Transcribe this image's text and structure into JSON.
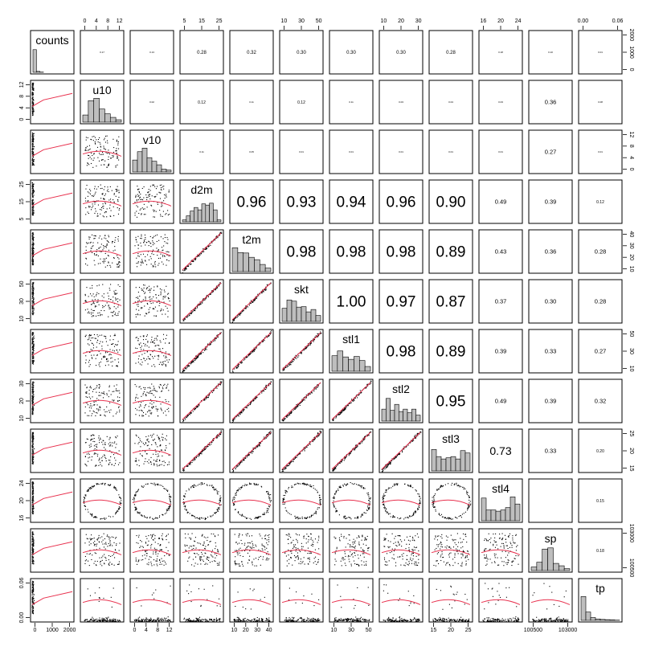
{
  "chart_data": {
    "type": "scatter-matrix",
    "variables": [
      "counts",
      "u10",
      "v10",
      "d2m",
      "t2m",
      "skt",
      "stl1",
      "stl2",
      "stl3",
      "stl4",
      "sp",
      "tp"
    ],
    "correlations": [
      [
        "",
        "0.17",
        "0.13",
        "0.28",
        "0.32",
        "0.30",
        "0.30",
        "0.30",
        "0.28",
        "0.18",
        "0.10",
        "0.01"
      ],
      [
        "",
        "",
        "0.02",
        "0.12",
        "0.11",
        "0.12",
        "0.11",
        "0.03",
        "0.04",
        "0.03",
        "0.36",
        "0.08"
      ],
      [
        "",
        "",
        "",
        "0.11",
        "0.05",
        "0.01",
        "0.01",
        "0.01",
        "0.01",
        "0.01",
        "0.27",
        "0.01"
      ],
      [
        "",
        "",
        "",
        "",
        "0.96",
        "0.93",
        "0.94",
        "0.96",
        "0.90",
        "0.49",
        "0.39",
        "0.12"
      ],
      [
        "",
        "",
        "",
        "",
        "",
        "0.98",
        "0.98",
        "0.98",
        "0.89",
        "0.43",
        "0.36",
        "0.28"
      ],
      [
        "",
        "",
        "",
        "",
        "",
        "",
        "1.00",
        "0.97",
        "0.87",
        "0.37",
        "0.30",
        "0.28"
      ],
      [
        "",
        "",
        "",
        "",
        "",
        "",
        "",
        "0.98",
        "0.89",
        "0.39",
        "0.33",
        "0.27"
      ],
      [
        "",
        "",
        "",
        "",
        "",
        "",
        "",
        "",
        "0.95",
        "0.49",
        "0.39",
        "0.32"
      ],
      [
        "",
        "",
        "",
        "",
        "",
        "",
        "",
        "",
        "",
        "0.73",
        "0.33",
        "0.20"
      ],
      [
        "",
        "",
        "",
        "",
        "",
        "",
        "",
        "",
        "",
        "",
        "",
        "0.15"
      ],
      [
        "",
        "",
        "",
        "",
        "",
        "",
        "",
        "",
        "",
        "",
        "",
        "0.18"
      ],
      [
        "",
        "",
        "",
        "",
        "",
        "",
        "",
        "",
        "",
        "",
        "",
        ""
      ]
    ],
    "histograms": [
      [
        0.95,
        0.04,
        0.01,
        0.0,
        0.0,
        0.0,
        0.0,
        0.0,
        0.0,
        0.0,
        0.0
      ],
      [
        0.3,
        0.9,
        1.0,
        0.55,
        0.35,
        0.2,
        0.1
      ],
      [
        0.5,
        0.85,
        1.0,
        0.6,
        0.45,
        0.3,
        0.12,
        0.08
      ],
      [
        0.08,
        0.25,
        0.45,
        0.6,
        0.5,
        0.75,
        0.7,
        0.78,
        0.5,
        0.08
      ],
      [
        1.0,
        0.8,
        0.78,
        0.6,
        0.5,
        0.3,
        0.15
      ],
      [
        0.55,
        0.9,
        0.85,
        0.6,
        0.62,
        0.4,
        0.5,
        0.25
      ],
      [
        0.65,
        0.85,
        0.6,
        0.5,
        0.62,
        0.45,
        0.2
      ],
      [
        0.5,
        0.95,
        0.45,
        0.7,
        0.4,
        0.5,
        0.35,
        0.5,
        0.25
      ],
      [
        0.9,
        0.6,
        0.5,
        0.55,
        0.6,
        0.5,
        0.85,
        0.75
      ],
      [
        0.95,
        0.45,
        0.45,
        0.4,
        0.45,
        0.55,
        1.0,
        0.7
      ],
      [
        0.15,
        0.35,
        0.9,
        0.95,
        0.3,
        0.2,
        0.08
      ],
      [
        1.0,
        0.35,
        0.12,
        0.06,
        0.04,
        0.03,
        0.02,
        0.01
      ]
    ],
    "axes": {
      "top": [
        {
          "var": "u10",
          "ticks": [
            "0",
            "4",
            "8",
            "12"
          ]
        },
        {
          "var": "d2m",
          "ticks": [
            "5",
            "15",
            "25"
          ]
        },
        {
          "var": "skt",
          "ticks": [
            "10",
            "30",
            "50"
          ]
        },
        {
          "var": "stl2",
          "ticks": [
            "10",
            "20",
            "30"
          ]
        },
        {
          "var": "stl4",
          "ticks": [
            "16",
            "20",
            "24"
          ]
        },
        {
          "var": "tp",
          "ticks": [
            "0.00",
            "0.06"
          ]
        }
      ],
      "bottom": [
        {
          "var": "counts",
          "ticks": [
            "0",
            "1000",
            "2000"
          ]
        },
        {
          "var": "v10",
          "ticks": [
            "0",
            "4",
            "8",
            "12"
          ]
        },
        {
          "var": "t2m",
          "ticks": [
            "10",
            "20",
            "30",
            "40"
          ]
        },
        {
          "var": "stl1",
          "ticks": [
            "10",
            "30",
            "50"
          ]
        },
        {
          "var": "stl3",
          "ticks": [
            "15",
            "20",
            "25"
          ]
        },
        {
          "var": "sp",
          "ticks": [
            "100500",
            "103000"
          ]
        }
      ],
      "left": [
        {
          "var": "u10",
          "ticks": [
            "0",
            "4",
            "8",
            "12"
          ]
        },
        {
          "var": "d2m",
          "ticks": [
            "5",
            "15",
            "25"
          ]
        },
        {
          "var": "skt",
          "ticks": [
            "10",
            "30",
            "50"
          ]
        },
        {
          "var": "stl2",
          "ticks": [
            "10",
            "20",
            "30"
          ]
        },
        {
          "var": "stl4",
          "ticks": [
            "16",
            "20",
            "24"
          ]
        },
        {
          "var": "tp",
          "ticks": [
            "0.00",
            "0.06"
          ]
        }
      ],
      "right": [
        {
          "var": "counts",
          "ticks": [
            "0",
            "1000",
            "2000"
          ]
        },
        {
          "var": "v10",
          "ticks": [
            "0",
            "4",
            "8",
            "12"
          ]
        },
        {
          "var": "t2m",
          "ticks": [
            "10",
            "20",
            "30",
            "40"
          ]
        },
        {
          "var": "stl1",
          "ticks": [
            "10",
            "30",
            "50"
          ]
        },
        {
          "var": "stl3",
          "ticks": [
            "15",
            "20",
            "25"
          ]
        },
        {
          "var": "sp",
          "ticks": [
            "100500",
            "103000"
          ]
        }
      ]
    },
    "fit_line_color": "#E8314E",
    "bar_color": "#BEBEBE",
    "point_color": "#000000",
    "grid": false
  }
}
